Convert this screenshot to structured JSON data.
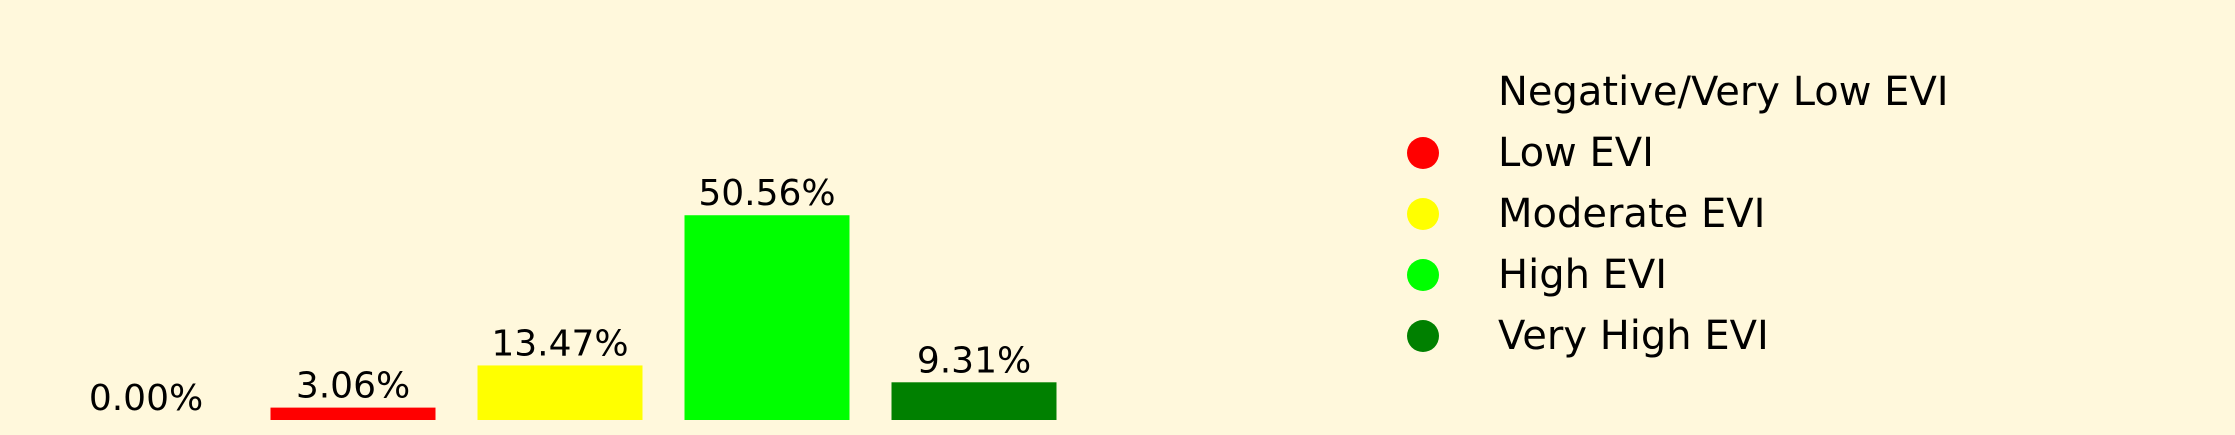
{
  "chart_data": {
    "type": "bar",
    "categories": [
      "Negative/Very Low EVI",
      "Low EVI",
      "Moderate EVI",
      "High EVI",
      "Very High EVI"
    ],
    "values": [
      0.0,
      3.06,
      13.47,
      50.56,
      9.31
    ],
    "data_labels": [
      "0.00%",
      "3.06%",
      "13.47%",
      "50.56%",
      "9.31%"
    ],
    "colors": [
      "#fff8dc",
      "#ff0000",
      "#ffff00",
      "#00ff00",
      "#008000"
    ],
    "ylim": [
      0,
      100
    ],
    "grid": false,
    "legend_position": "right",
    "legend": [
      {
        "label": "Negative/Very Low EVI",
        "color": "#fff8dc"
      },
      {
        "label": "Low EVI",
        "color": "#ff0000"
      },
      {
        "label": "Moderate EVI",
        "color": "#ffff00"
      },
      {
        "label": "High EVI",
        "color": "#00ff00"
      },
      {
        "label": "Very High EVI",
        "color": "#008000"
      }
    ]
  }
}
